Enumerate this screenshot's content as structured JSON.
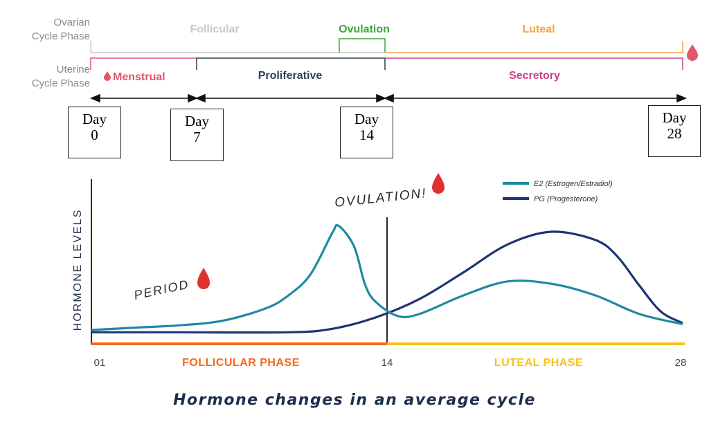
{
  "timeline": {
    "ovarian_label": [
      "Ovarian",
      "Cycle Phase"
    ],
    "uterine_label": [
      "Uterine",
      "Cycle Phase"
    ],
    "ovarian_phases": [
      {
        "name": "Follicular",
        "color": "#c8c8c8"
      },
      {
        "name": "Ovulation",
        "color": "#3aaa35"
      },
      {
        "name": "Luteal",
        "color": "#f5a540"
      }
    ],
    "uterine_phases": [
      {
        "name": "Menstrual",
        "color": "#e4556b"
      },
      {
        "name": "Proliferative",
        "color": "#2f3e50"
      },
      {
        "name": "Secretory",
        "color": "#c9408f"
      }
    ],
    "day_boxes": [
      {
        "word": "Day",
        "num": "0"
      },
      {
        "word": "Day",
        "num": "7"
      },
      {
        "word": "Day",
        "num": "14"
      },
      {
        "word": "Day",
        "num": "28"
      }
    ]
  },
  "chart_data": {
    "type": "line",
    "ylabel": "HORMONE LEVELS",
    "x_ticks": [
      "01",
      "14",
      "28"
    ],
    "xlim": [
      1,
      28
    ],
    "ylim": [
      0,
      100
    ],
    "phase_bands": [
      {
        "label": "FOLLICULAR PHASE",
        "from": 1,
        "to": 14,
        "color": "#f26a1b"
      },
      {
        "label": "LUTEAL PHASE",
        "from": 14,
        "to": 28,
        "color": "#f7c21b"
      }
    ],
    "annotations": [
      {
        "text": "OVULATION!",
        "x": 14
      },
      {
        "text": "PERIOD",
        "x": 5
      }
    ],
    "series": [
      {
        "name": "E2 (Estrogen/Estradiol)",
        "color": "#1e8aa0",
        "x": [
          1,
          3,
          5,
          7,
          9,
          10,
          11,
          12,
          12.3,
          13,
          13.5,
          14,
          15,
          16,
          18,
          20,
          22,
          24,
          26,
          28
        ],
        "y": [
          6,
          8,
          10,
          14,
          25,
          36,
          54,
          90,
          96,
          78,
          45,
          30,
          18,
          20,
          36,
          48,
          46,
          36,
          20,
          11
        ]
      },
      {
        "name": "PG (Progesterone)",
        "color": "#1e3378",
        "x": [
          1,
          5,
          10,
          12,
          14,
          16,
          18,
          20,
          22,
          24,
          25,
          26,
          27,
          28
        ],
        "y": [
          4,
          4,
          4,
          7,
          17,
          33,
          56,
          80,
          91,
          84,
          70,
          45,
          22,
          12
        ]
      }
    ],
    "title": "Hormone changes in an average cycle"
  }
}
